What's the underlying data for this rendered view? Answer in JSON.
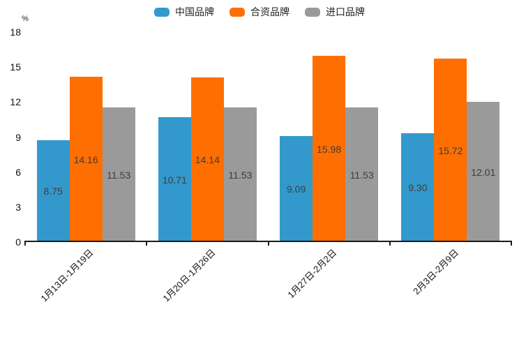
{
  "legend": {
    "items": [
      {
        "label": "中国品牌",
        "color": "#3399CC"
      },
      {
        "label": "合资品牌",
        "color": "#FF6E00"
      },
      {
        "label": "进口品牌",
        "color": "#9A9A9A"
      }
    ]
  },
  "chart_data": {
    "type": "bar",
    "title": "",
    "xlabel": "",
    "ylabel": "%",
    "categories": [
      "1月13日-1月19日",
      "1月20日-1月26日",
      "1月27日-2月2日",
      "2月3日-2月9日"
    ],
    "series": [
      {
        "name": "中国品牌",
        "color": "#3399CC",
        "values": [
          8.75,
          10.71,
          9.09,
          9.3
        ]
      },
      {
        "name": "合资品牌",
        "color": "#FF6E00",
        "values": [
          14.16,
          14.14,
          15.98,
          15.72
        ]
      },
      {
        "name": "进口品牌",
        "color": "#9A9A9A",
        "values": [
          11.53,
          11.53,
          11.53,
          12.01
        ]
      }
    ],
    "value_label_decimals": 2,
    "y_ticks": [
      0,
      3,
      6,
      9,
      12,
      15,
      18
    ],
    "ylim": [
      0,
      18
    ],
    "grid": false,
    "legend_position": "top"
  }
}
